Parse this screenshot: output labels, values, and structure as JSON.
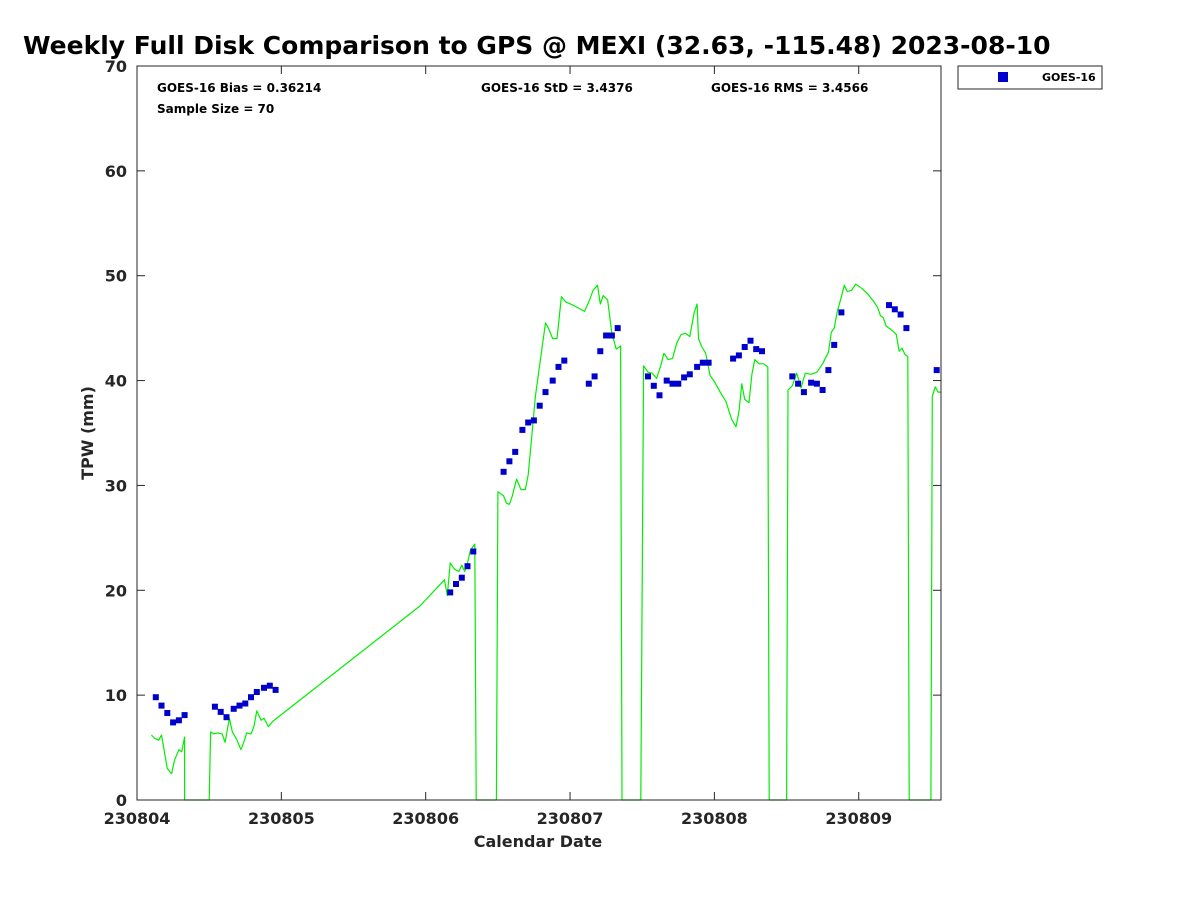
{
  "chart_data": {
    "type": "scatter",
    "title": "Weekly Full Disk Comparison to GPS @ MEXI (32.63, -115.48) 2023-08-10",
    "xlabel": "Calendar Date",
    "ylabel": "TPW (mm)",
    "xlim": [
      230804.0,
      230809.57
    ],
    "ylim": [
      0,
      70
    ],
    "x_ticks": [
      230804,
      230805,
      230806,
      230807,
      230808,
      230809
    ],
    "x_tick_labels": [
      "230804",
      "230805",
      "230806",
      "230807",
      "230808",
      "230809"
    ],
    "y_ticks": [
      0,
      10,
      20,
      30,
      40,
      50,
      60,
      70
    ],
    "y_tick_labels": [
      "0",
      "10",
      "20",
      "30",
      "40",
      "50",
      "60",
      "70"
    ],
    "legend": {
      "position": "top-right",
      "entries": [
        {
          "label": "GOES-16",
          "color": "#0000cc",
          "marker": "square"
        }
      ]
    },
    "stats": {
      "bias": "GOES-16 Bias = 0.36214",
      "std": "GOES-16 StD = 3.4376",
      "rms": "GOES-16 RMS = 3.4566",
      "sample_size": "Sample Size = 70"
    },
    "series": [
      {
        "name": "GOES-16",
        "kind": "scatter",
        "color": "#0000cc",
        "points": [
          [
            230804.13,
            9.8
          ],
          [
            230804.17,
            9.0
          ],
          [
            230804.21,
            8.3
          ],
          [
            230804.25,
            7.4
          ],
          [
            230804.29,
            7.6
          ],
          [
            230804.33,
            8.1
          ],
          [
            230804.54,
            8.9
          ],
          [
            230804.58,
            8.4
          ],
          [
            230804.62,
            7.9
          ],
          [
            230804.67,
            8.7
          ],
          [
            230804.71,
            9.0
          ],
          [
            230804.75,
            9.2
          ],
          [
            230804.79,
            9.8
          ],
          [
            230804.83,
            10.3
          ],
          [
            230804.88,
            10.7
          ],
          [
            230804.92,
            10.9
          ],
          [
            230804.96,
            10.5
          ],
          [
            230806.17,
            19.8
          ],
          [
            230806.21,
            20.6
          ],
          [
            230806.25,
            21.2
          ],
          [
            230806.29,
            22.3
          ],
          [
            230806.33,
            23.7
          ],
          [
            230806.54,
            31.3
          ],
          [
            230806.58,
            32.3
          ],
          [
            230806.62,
            33.2
          ],
          [
            230806.67,
            35.3
          ],
          [
            230806.71,
            36.0
          ],
          [
            230806.75,
            36.2
          ],
          [
            230806.79,
            37.6
          ],
          [
            230806.83,
            38.9
          ],
          [
            230806.88,
            40.0
          ],
          [
            230806.92,
            41.3
          ],
          [
            230806.96,
            41.9
          ],
          [
            230807.13,
            39.7
          ],
          [
            230807.17,
            40.4
          ],
          [
            230807.21,
            42.8
          ],
          [
            230807.25,
            44.3
          ],
          [
            230807.29,
            44.3
          ],
          [
            230807.33,
            45.0
          ],
          [
            230807.54,
            40.4
          ],
          [
            230807.58,
            39.5
          ],
          [
            230807.62,
            38.6
          ],
          [
            230807.67,
            40.0
          ],
          [
            230807.71,
            39.7
          ],
          [
            230807.75,
            39.7
          ],
          [
            230807.79,
            40.3
          ],
          [
            230807.83,
            40.6
          ],
          [
            230807.88,
            41.3
          ],
          [
            230807.92,
            41.7
          ],
          [
            230807.96,
            41.7
          ],
          [
            230808.13,
            42.1
          ],
          [
            230808.17,
            42.4
          ],
          [
            230808.21,
            43.2
          ],
          [
            230808.25,
            43.8
          ],
          [
            230808.29,
            43.0
          ],
          [
            230808.33,
            42.8
          ],
          [
            230808.54,
            40.4
          ],
          [
            230808.58,
            39.7
          ],
          [
            230808.62,
            38.9
          ],
          [
            230808.67,
            39.8
          ],
          [
            230808.71,
            39.7
          ],
          [
            230808.75,
            39.1
          ],
          [
            230808.79,
            41.0
          ],
          [
            230808.83,
            43.4
          ],
          [
            230808.88,
            46.5
          ],
          [
            230809.21,
            47.2
          ],
          [
            230809.25,
            46.8
          ],
          [
            230809.29,
            46.3
          ],
          [
            230809.33,
            45.0
          ],
          [
            230809.54,
            41.0
          ]
        ]
      },
      {
        "name": "GPS",
        "kind": "line",
        "color": "#00ee00",
        "points": [
          [
            230804.1,
            6.2
          ],
          [
            230804.12,
            5.9
          ],
          [
            230804.15,
            5.7
          ],
          [
            230804.17,
            6.2
          ],
          [
            230804.19,
            4.6
          ],
          [
            230804.21,
            3.0
          ],
          [
            230804.24,
            2.5
          ],
          [
            230804.26,
            3.8
          ],
          [
            230804.29,
            4.8
          ],
          [
            230804.31,
            4.6
          ],
          [
            230804.33,
            6.0
          ],
          [
            230804.33,
            0.0
          ],
          [
            230804.5,
            0.0
          ],
          [
            230804.51,
            6.5
          ],
          [
            230804.53,
            6.3
          ],
          [
            230804.56,
            6.4
          ],
          [
            230804.59,
            6.3
          ],
          [
            230804.61,
            5.5
          ],
          [
            230804.64,
            7.8
          ],
          [
            230804.66,
            6.5
          ],
          [
            230804.69,
            5.8
          ],
          [
            230804.72,
            4.8
          ],
          [
            230804.74,
            5.5
          ],
          [
            230804.76,
            6.4
          ],
          [
            230804.79,
            6.3
          ],
          [
            230804.81,
            7.0
          ],
          [
            230804.83,
            8.5
          ],
          [
            230804.86,
            7.6
          ],
          [
            230804.88,
            7.8
          ],
          [
            230804.91,
            7.0
          ],
          [
            230804.94,
            7.5
          ],
          [
            230805.96,
            18.5
          ],
          [
            230806.13,
            21.0
          ],
          [
            230806.15,
            19.5
          ],
          [
            230806.17,
            22.6
          ],
          [
            230806.2,
            22.0
          ],
          [
            230806.23,
            21.8
          ],
          [
            230806.25,
            22.4
          ],
          [
            230806.27,
            21.8
          ],
          [
            230806.29,
            22.6
          ],
          [
            230806.31,
            23.8
          ],
          [
            230806.34,
            24.4
          ],
          [
            230806.35,
            0.0
          ],
          [
            230806.49,
            0.0
          ],
          [
            230806.5,
            29.4
          ],
          [
            230806.54,
            29.0
          ],
          [
            230806.56,
            28.3
          ],
          [
            230806.58,
            28.2
          ],
          [
            230806.6,
            29.0
          ],
          [
            230806.63,
            30.6
          ],
          [
            230806.66,
            29.6
          ],
          [
            230806.69,
            29.6
          ],
          [
            230806.71,
            31.0
          ],
          [
            230806.73,
            34.0
          ],
          [
            230806.76,
            38.5
          ],
          [
            230806.79,
            41.5
          ],
          [
            230806.83,
            45.5
          ],
          [
            230806.85,
            45.0
          ],
          [
            230806.88,
            44.0
          ],
          [
            230806.91,
            44.0
          ],
          [
            230806.94,
            48.0
          ],
          [
            230806.97,
            47.5
          ],
          [
            230807.02,
            47.2
          ],
          [
            230807.1,
            46.6
          ],
          [
            230807.13,
            47.5
          ],
          [
            230807.16,
            48.6
          ],
          [
            230807.19,
            49.1
          ],
          [
            230807.21,
            47.3
          ],
          [
            230807.23,
            48.1
          ],
          [
            230807.26,
            47.7
          ],
          [
            230807.29,
            44.5
          ],
          [
            230807.32,
            43.0
          ],
          [
            230807.35,
            43.3
          ],
          [
            230807.36,
            0.0
          ],
          [
            230807.49,
            0.0
          ],
          [
            230807.51,
            41.4
          ],
          [
            230807.54,
            40.8
          ],
          [
            230807.57,
            40.7
          ],
          [
            230807.6,
            40.2
          ],
          [
            230807.63,
            41.5
          ],
          [
            230807.65,
            42.6
          ],
          [
            230807.68,
            42.0
          ],
          [
            230807.71,
            42.1
          ],
          [
            230807.74,
            43.6
          ],
          [
            230807.77,
            44.4
          ],
          [
            230807.8,
            44.5
          ],
          [
            230807.83,
            44.2
          ],
          [
            230807.86,
            46.5
          ],
          [
            230807.88,
            47.3
          ],
          [
            230807.89,
            44.0
          ],
          [
            230807.91,
            43.3
          ],
          [
            230807.94,
            42.6
          ],
          [
            230807.97,
            40.5
          ],
          [
            230808.0,
            39.9
          ],
          [
            230808.04,
            38.9
          ],
          [
            230808.08,
            38.0
          ],
          [
            230808.12,
            36.3
          ],
          [
            230808.15,
            35.6
          ],
          [
            230808.17,
            37.0
          ],
          [
            230808.19,
            39.7
          ],
          [
            230808.21,
            38.2
          ],
          [
            230808.24,
            37.9
          ],
          [
            230808.26,
            40.6
          ],
          [
            230808.28,
            42.0
          ],
          [
            230808.31,
            41.6
          ],
          [
            230808.34,
            41.6
          ],
          [
            230808.37,
            41.3
          ],
          [
            230808.38,
            0.0
          ],
          [
            230808.5,
            0.0
          ],
          [
            230808.51,
            39.1
          ],
          [
            230808.54,
            39.5
          ],
          [
            230808.57,
            40.7
          ],
          [
            230808.6,
            39.3
          ],
          [
            230808.63,
            40.7
          ],
          [
            230808.67,
            40.6
          ],
          [
            230808.71,
            40.8
          ],
          [
            230808.75,
            41.6
          ],
          [
            230808.79,
            42.7
          ],
          [
            230808.81,
            44.6
          ],
          [
            230808.83,
            45.0
          ],
          [
            230808.85,
            46.5
          ],
          [
            230808.88,
            48.0
          ],
          [
            230808.9,
            49.1
          ],
          [
            230808.92,
            48.5
          ],
          [
            230808.95,
            48.6
          ],
          [
            230808.98,
            49.2
          ],
          [
            230809.02,
            48.8
          ],
          [
            230809.06,
            48.3
          ],
          [
            230809.1,
            47.6
          ],
          [
            230809.13,
            47.0
          ],
          [
            230809.15,
            46.2
          ],
          [
            230809.17,
            46.0
          ],
          [
            230809.19,
            45.2
          ],
          [
            230809.23,
            44.8
          ],
          [
            230809.26,
            44.4
          ],
          [
            230809.28,
            42.8
          ],
          [
            230809.3,
            43.1
          ],
          [
            230809.32,
            42.5
          ],
          [
            230809.34,
            42.3
          ],
          [
            230809.35,
            0.0
          ],
          [
            230809.5,
            0.0
          ],
          [
            230809.51,
            38.5
          ],
          [
            230809.53,
            39.4
          ],
          [
            230809.55,
            38.9
          ],
          [
            230809.57,
            38.9
          ]
        ]
      }
    ]
  }
}
